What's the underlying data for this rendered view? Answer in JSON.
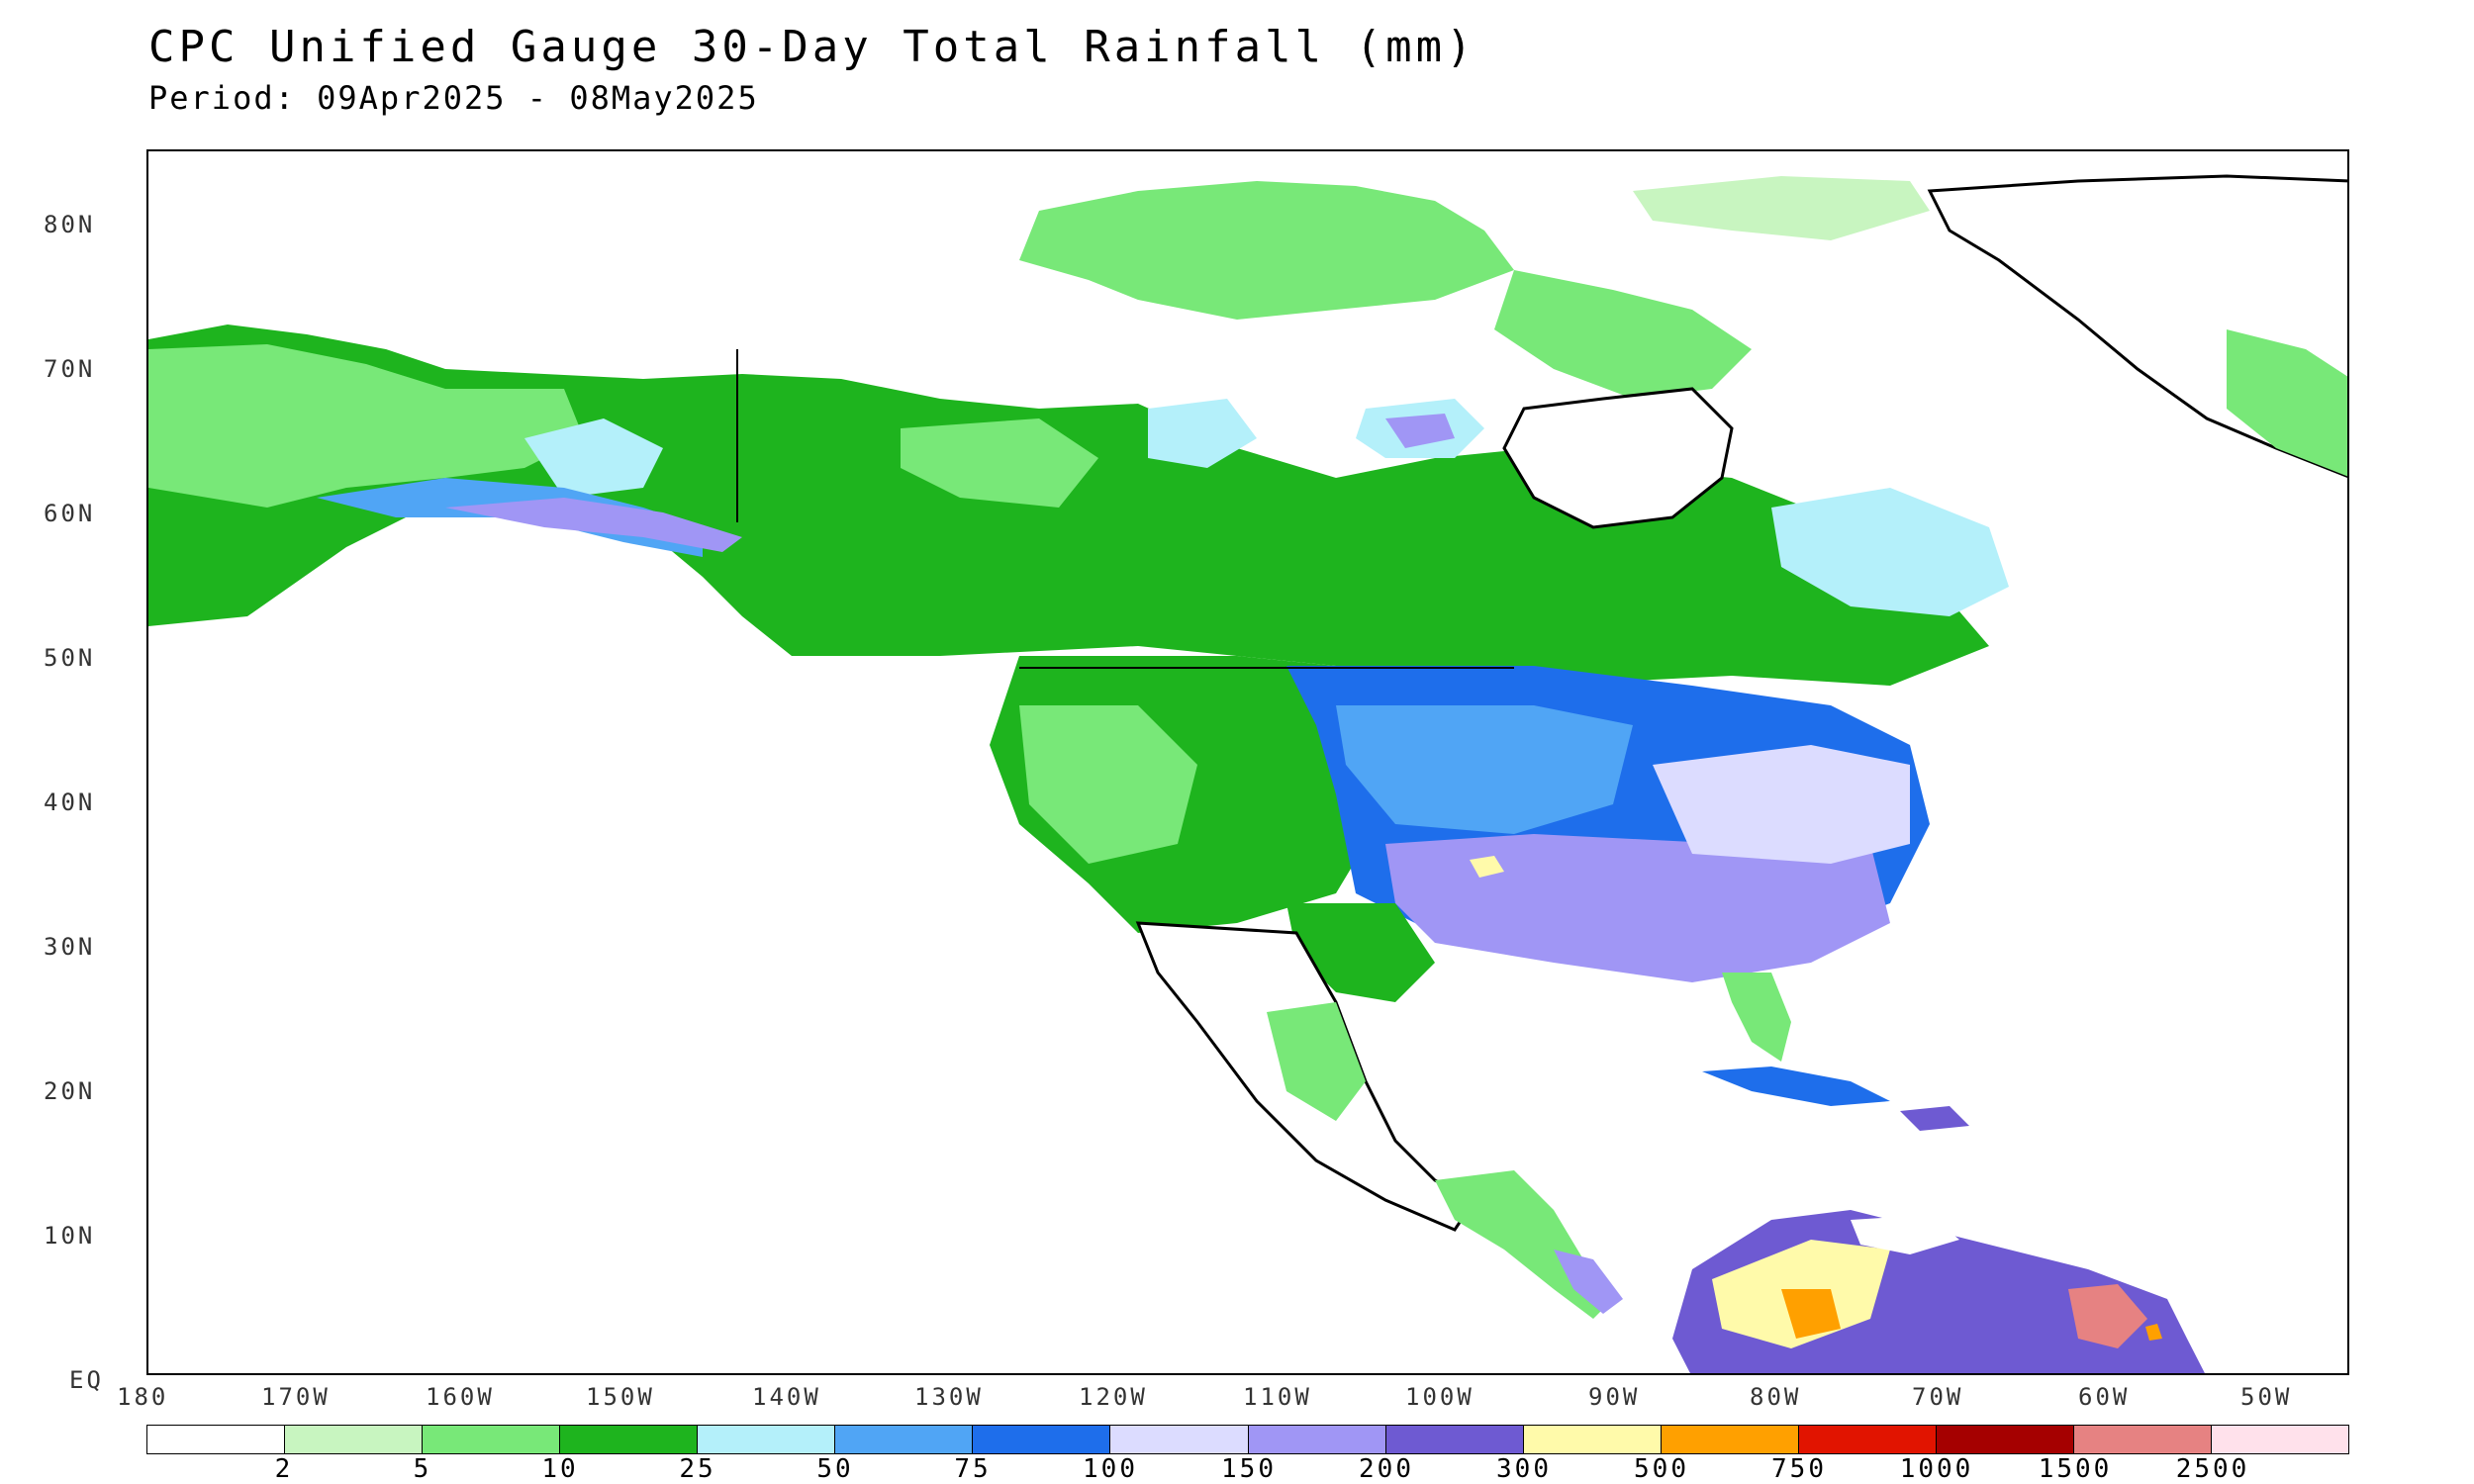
{
  "title": "CPC Unified Gauge 30-Day Total Rainfall (mm)",
  "subtitle": "Period: 09Apr2025 - 08May2025",
  "map": {
    "extent": {
      "lon_min": -180,
      "lon_max": -45,
      "lat_min": 0,
      "lat_max": 85
    },
    "lat_ticks": [
      "80N",
      "70N",
      "60N",
      "50N",
      "40N",
      "30N",
      "20N",
      "10N",
      "EQ"
    ],
    "lon_ticks": [
      "180",
      "170W",
      "160W",
      "150W",
      "140W",
      "130W",
      "120W",
      "110W",
      "100W",
      "90W",
      "80W",
      "70W",
      "60W",
      "50W"
    ]
  },
  "colorbar": {
    "colors": [
      "#ffffff",
      "#c8f5c0",
      "#78e878",
      "#1eb41e",
      "#b4f0fa",
      "#50a5f5",
      "#1e6eeb",
      "#dcdcff",
      "#a096f5",
      "#6e5ad2",
      "#fffaaa",
      "#ffa000",
      "#e11400",
      "#a50000",
      "#e68282",
      "#ffe1eb"
    ],
    "labels": [
      "2",
      "5",
      "10",
      "25",
      "50",
      "75",
      "100",
      "150",
      "200",
      "300",
      "500",
      "750",
      "1000",
      "1500",
      "2500"
    ]
  }
}
